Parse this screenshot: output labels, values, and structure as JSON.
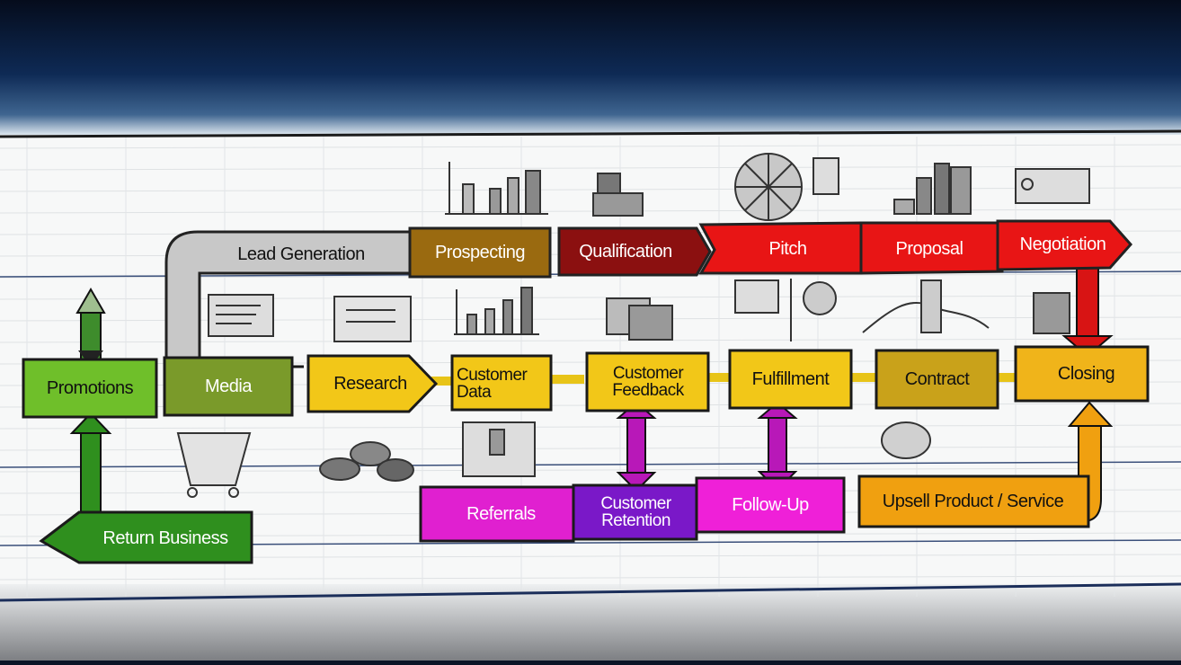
{
  "stages": {
    "promotions": "Promotions",
    "media": "Media",
    "research": "Research",
    "customer_data": "Customer Data",
    "customer_feedback": "Customer Feedback",
    "fulfillment": "Fulfillment",
    "contract": "Contract",
    "closing": "Closing",
    "lead_generation": "Lead Generation",
    "prospecting": "Prospecting",
    "qualification": "Qualification",
    "pitch": "Pitch",
    "proposal": "Proposal",
    "negotiation": "Negotiation",
    "referrals": "Referrals",
    "customer_retention": "Customer Retention",
    "follow_up": "Follow-Up",
    "upsell": "Upsell Product / Service",
    "return_business": "Return Business"
  },
  "colors": {
    "green_light": "#6fbf2a",
    "green_dark": "#2f8f1e",
    "olive": "#7a9a2a",
    "yellow": "#f2c718",
    "gold": "#c9a21a",
    "brown": "#9a6a10",
    "maroon": "#8b1010",
    "red": "#e81515",
    "magenta": "#e020d0",
    "purple": "#7a18c8",
    "orange": "#f0a010",
    "gray": "#c8c8c8"
  }
}
